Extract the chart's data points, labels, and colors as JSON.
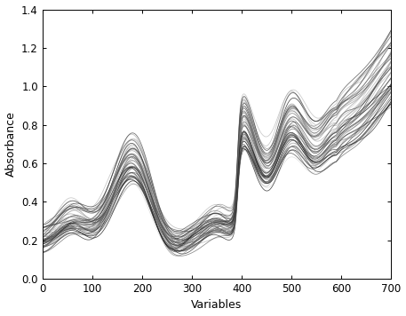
{
  "xlabel": "Variables",
  "ylabel": "Absorbance",
  "xlim": [
    0,
    700
  ],
  "ylim": [
    0,
    1.4
  ],
  "xticks": [
    0,
    100,
    200,
    300,
    400,
    500,
    600,
    700
  ],
  "yticks": [
    0,
    0.2,
    0.4,
    0.6,
    0.8,
    1.0,
    1.2,
    1.4
  ],
  "n_spectra": 50,
  "n_points": 700,
  "background_color": "#ffffff",
  "line_width": 0.55,
  "seed": 7
}
